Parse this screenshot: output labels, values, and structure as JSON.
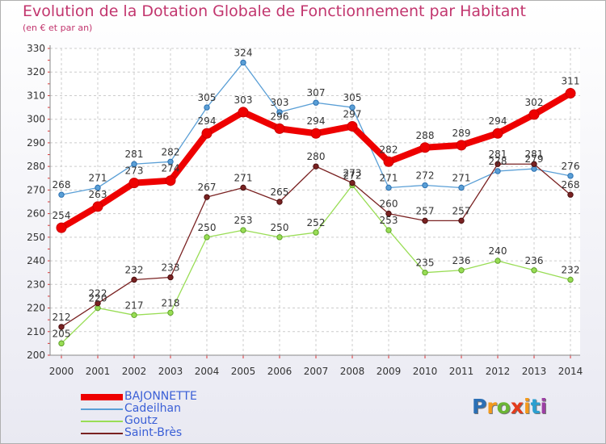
{
  "chart_data": {
    "type": "line",
    "title": "Evolution de la Dotation Globale de Fonctionnement par Habitant",
    "subtitle": "(en € et par an)",
    "x": [
      "2000",
      "2001",
      "2002",
      "2003",
      "2004",
      "2005",
      "2006",
      "2007",
      "2008",
      "2009",
      "2010",
      "2011",
      "2012",
      "2013",
      "2014"
    ],
    "ylim": [
      200,
      330
    ],
    "yticks": [
      200,
      210,
      220,
      230,
      240,
      250,
      260,
      270,
      280,
      290,
      300,
      310,
      320,
      330
    ],
    "grid": true,
    "legend_position": "bottom-left",
    "series": [
      {
        "name": "BAJONNETTE",
        "color": "#ee0000",
        "emphasis": true,
        "values": [
          254,
          263,
          273,
          274,
          294,
          303,
          296,
          294,
          297,
          282,
          288,
          289,
          294,
          302,
          311
        ]
      },
      {
        "name": "Cadeilhan",
        "color": "#5a9fd6",
        "emphasis": false,
        "values": [
          268,
          271,
          281,
          282,
          305,
          324,
          303,
          307,
          305,
          271,
          272,
          271,
          278,
          279,
          276
        ]
      },
      {
        "name": "Goutz",
        "color": "#99dd55",
        "emphasis": false,
        "values": [
          205,
          220,
          217,
          218,
          250,
          253,
          250,
          252,
          272,
          253,
          235,
          236,
          240,
          236,
          232
        ]
      },
      {
        "name": "Saint-Brès",
        "color": "#7a2222",
        "emphasis": false,
        "values": [
          212,
          222,
          232,
          233,
          267,
          271,
          265,
          280,
          273,
          260,
          257,
          257,
          281,
          281,
          268
        ]
      }
    ]
  },
  "logo": {
    "letters": [
      "P",
      "r",
      "o",
      "x",
      "i",
      "t",
      "i"
    ],
    "colors": [
      "#2b6fb5",
      "#f39a1c",
      "#6ab534",
      "#e33b1c",
      "#f39a1c",
      "#2b9fd0",
      "#9c3fa3"
    ]
  }
}
